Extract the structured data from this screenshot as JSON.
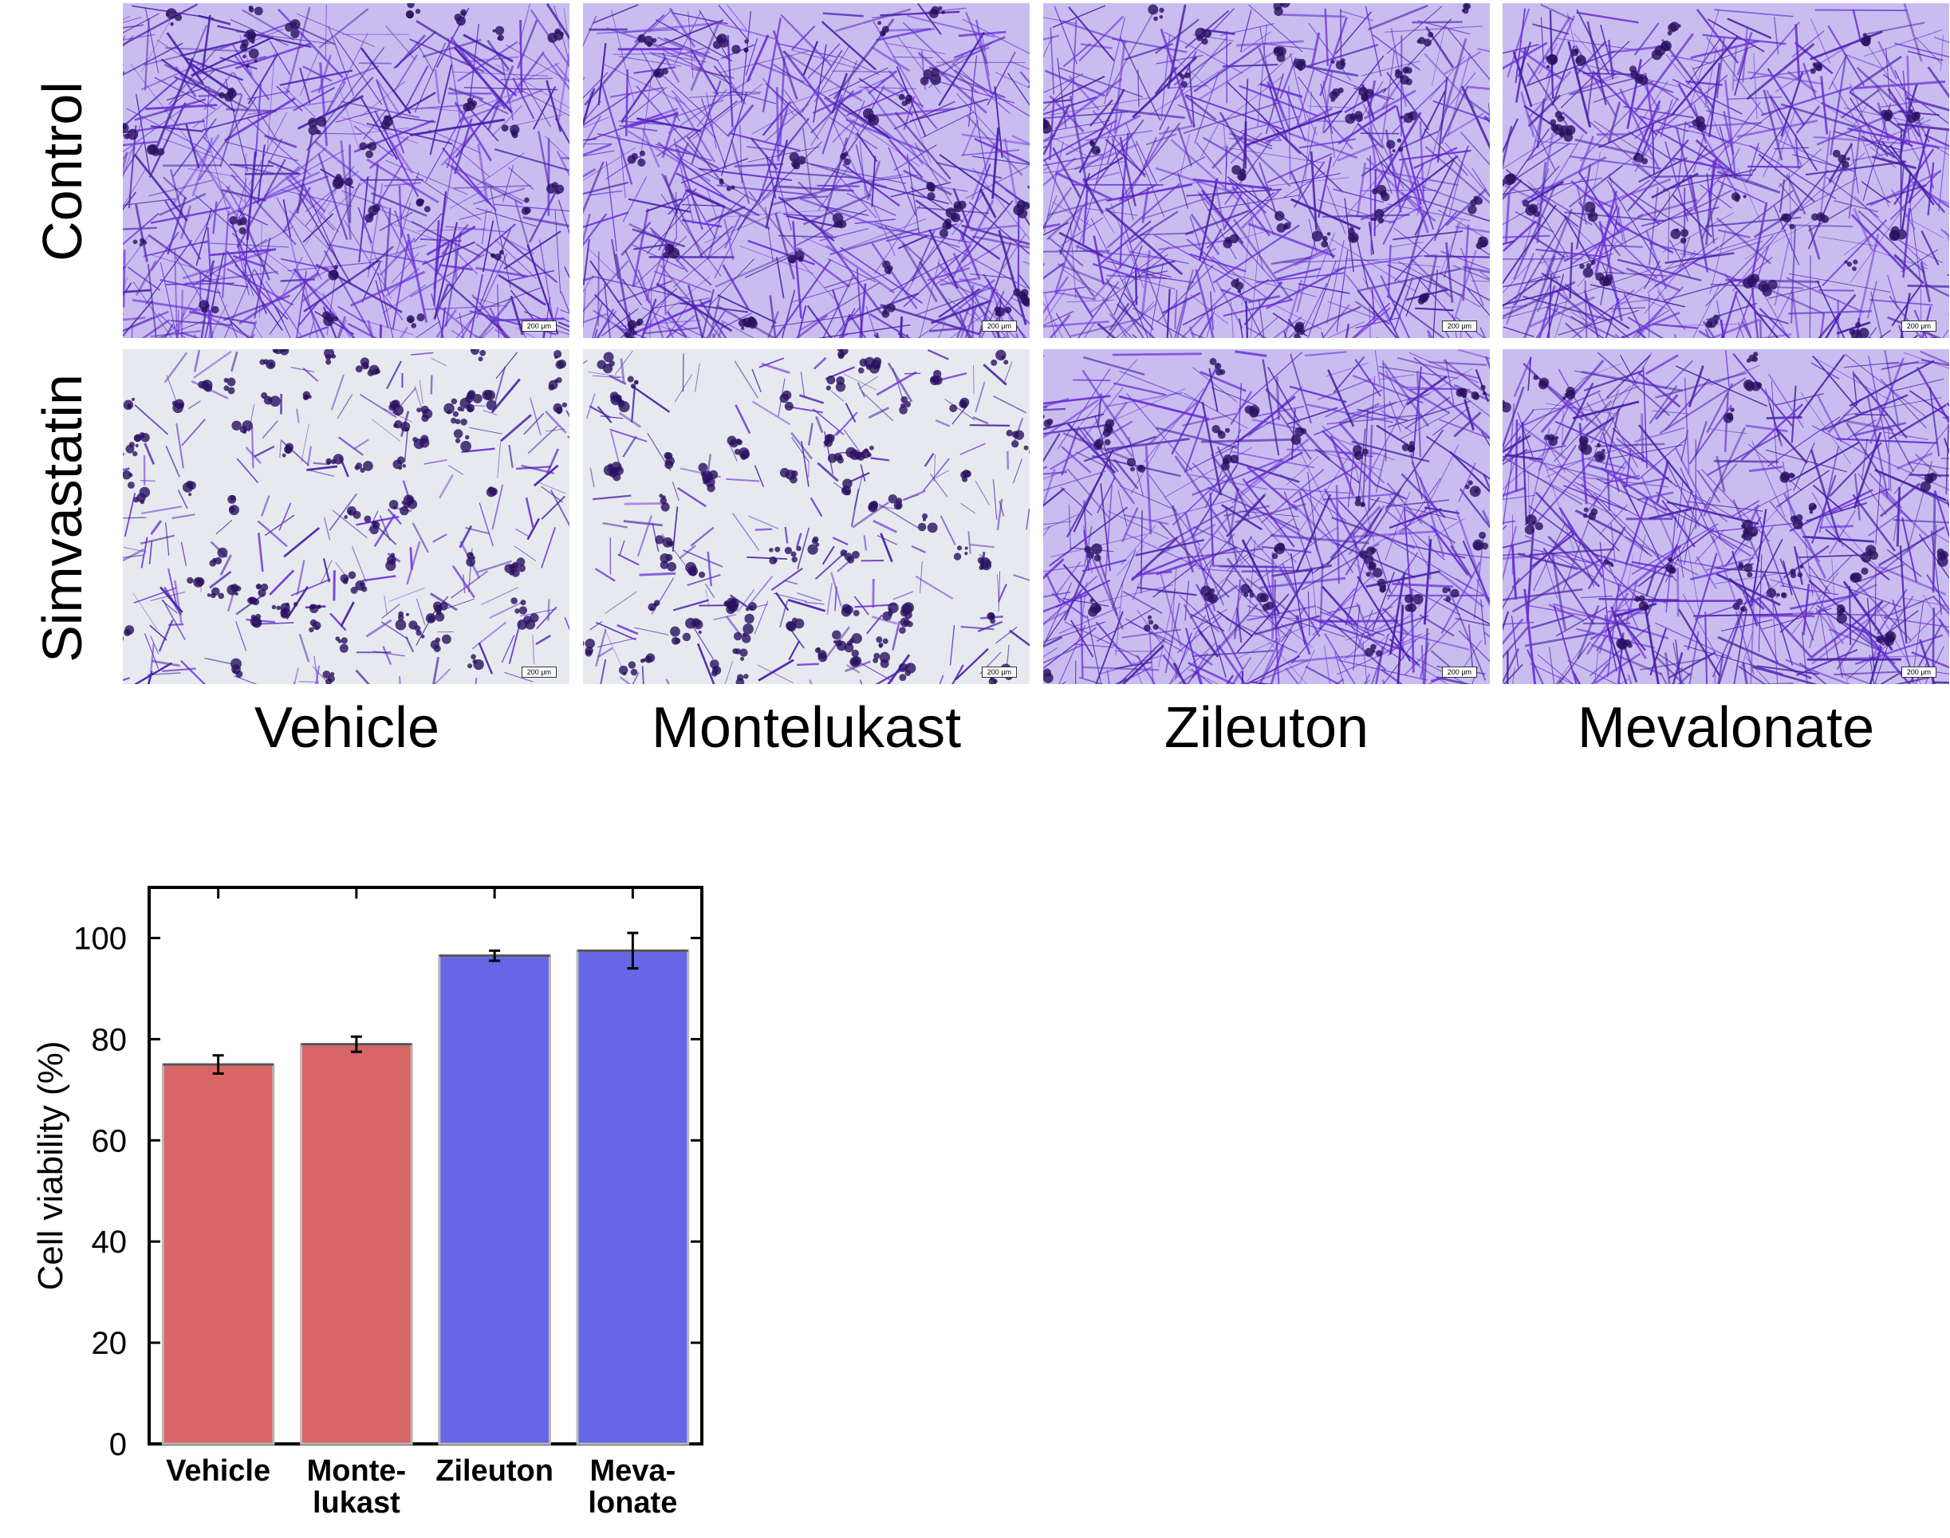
{
  "micrographs": {
    "row_labels": [
      "Control",
      "Simvastatin"
    ],
    "column_labels": [
      "Vehicle",
      "Montelukast",
      "Zileuton",
      "Mevalonate"
    ],
    "scale_bar": "200 μm",
    "stain_color": "#6a2fd6",
    "panels": [
      {
        "row": "Control",
        "column": "Vehicle",
        "density": "dense"
      },
      {
        "row": "Control",
        "column": "Montelukast",
        "density": "dense"
      },
      {
        "row": "Control",
        "column": "Zileuton",
        "density": "dense"
      },
      {
        "row": "Control",
        "column": "Mevalonate",
        "density": "dense"
      },
      {
        "row": "Simvastatin",
        "column": "Vehicle",
        "density": "sparse"
      },
      {
        "row": "Simvastatin",
        "column": "Montelukast",
        "density": "sparse"
      },
      {
        "row": "Simvastatin",
        "column": "Zileuton",
        "density": "dense"
      },
      {
        "row": "Simvastatin",
        "column": "Mevalonate",
        "density": "dense"
      }
    ]
  },
  "chart_data": {
    "type": "bar",
    "categories": [
      [
        "Vehicle"
      ],
      [
        "Monte-",
        "lukast"
      ],
      [
        "Zileuton"
      ],
      [
        "Meva-",
        "lonate"
      ]
    ],
    "values": [
      75,
      79,
      96.5,
      97.5
    ],
    "errors": [
      1.8,
      1.5,
      1.0,
      3.5
    ],
    "colors": [
      "#d96666",
      "#d96666",
      "#6666e6",
      "#6666e6"
    ],
    "xlabel": "",
    "ylabel": "Cell viability (%)",
    "ylim": [
      0,
      110
    ],
    "yticks": [
      0,
      20,
      40,
      60,
      80,
      100
    ],
    "grid": false,
    "legend": "none"
  }
}
